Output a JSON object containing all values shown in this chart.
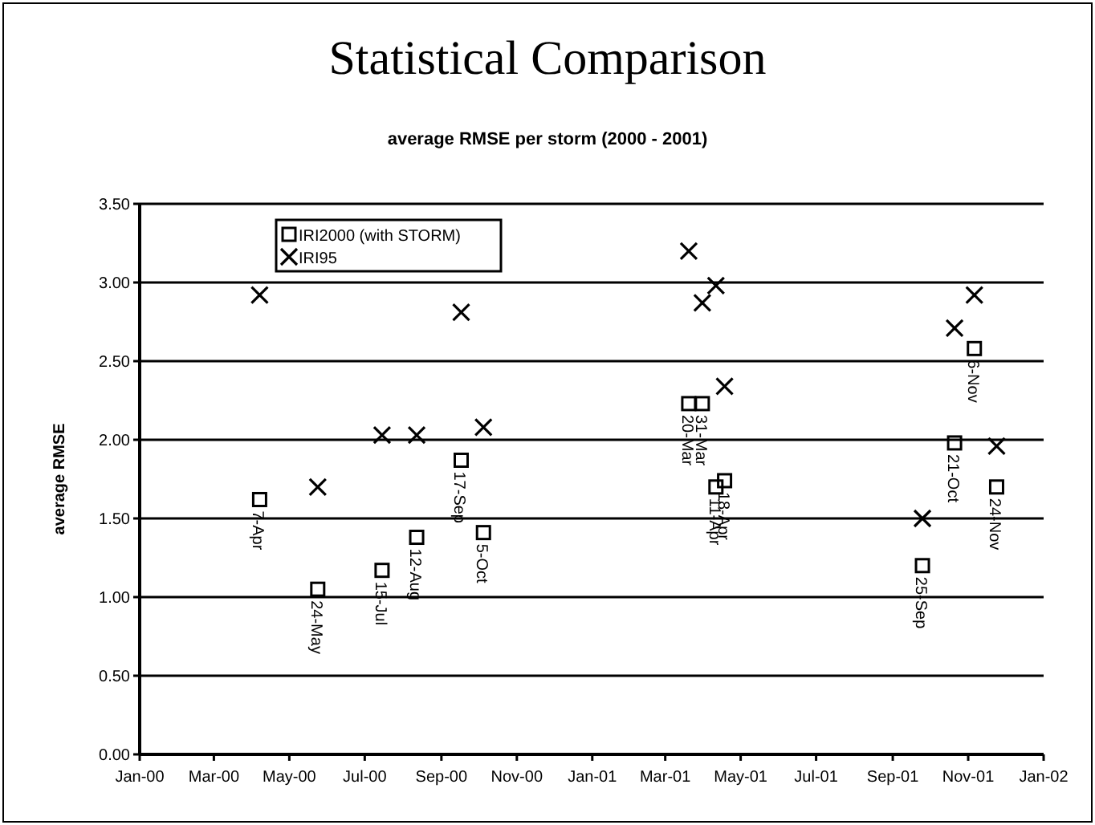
{
  "chart_data": {
    "type": "scatter",
    "title": "Statistical Comparison",
    "subtitle": "average RMSE per storm (2000 - 2001)",
    "ylabel": "average RMSE",
    "x": [
      "2000-04-07",
      "2000-05-24",
      "2000-07-15",
      "2000-08-12",
      "2000-09-17",
      "2000-10-05",
      "2001-03-20",
      "2001-03-31",
      "2001-04-11",
      "2001-04-18",
      "2001-09-25",
      "2001-10-21",
      "2001-11-06",
      "2001-11-24"
    ],
    "series": [
      {
        "name": "IRI2000 (with STORM)",
        "color": "#000000",
        "marker": "square",
        "values": [
          1.62,
          1.05,
          1.17,
          1.38,
          1.87,
          1.41,
          2.23,
          2.23,
          1.7,
          1.74,
          1.2,
          1.98,
          2.58,
          1.7
        ]
      },
      {
        "name": "IRI95",
        "color": "#000000",
        "marker": "cross",
        "values": [
          2.92,
          1.7,
          2.03,
          2.03,
          2.81,
          2.08,
          3.2,
          2.87,
          2.98,
          2.34,
          1.5,
          2.71,
          2.92,
          1.96
        ]
      }
    ],
    "annotations": [
      {
        "text": "7-Apr",
        "x": "2000-04-07",
        "y": 1.62
      },
      {
        "text": "24-May",
        "x": "2000-05-24",
        "y": 1.05
      },
      {
        "text": "15-Jul",
        "x": "2000-07-15",
        "y": 1.17
      },
      {
        "text": "12-Aug",
        "x": "2000-08-12",
        "y": 1.38
      },
      {
        "text": "17-Sep",
        "x": "2000-09-17",
        "y": 1.87
      },
      {
        "text": "5-Oct",
        "x": "2000-10-05",
        "y": 1.41
      },
      {
        "text": "20-Mar",
        "x": "2001-03-20",
        "y": 2.23
      },
      {
        "text": "31-Mar",
        "x": "2001-03-31",
        "y": 2.23
      },
      {
        "text": "11-Apr",
        "x": "2001-04-11",
        "y": 1.7
      },
      {
        "text": "18-Apr",
        "x": "2001-04-18",
        "y": 1.74
      },
      {
        "text": "25-Sep",
        "x": "2001-09-25",
        "y": 1.2
      },
      {
        "text": "21-Oct",
        "x": "2001-10-21",
        "y": 1.98
      },
      {
        "text": "6-Nov",
        "x": "2001-11-06",
        "y": 2.58
      },
      {
        "text": "24-Nov",
        "x": "2001-11-24",
        "y": 1.7
      }
    ],
    "xlim": [
      "2000-01-01",
      "2002-01-01"
    ],
    "xticks": [
      {
        "value": "2000-01-01",
        "label": "Jan-00"
      },
      {
        "value": "2000-03-01",
        "label": "Mar-00"
      },
      {
        "value": "2000-05-01",
        "label": "May-00"
      },
      {
        "value": "2000-07-01",
        "label": "Jul-00"
      },
      {
        "value": "2000-09-01",
        "label": "Sep-00"
      },
      {
        "value": "2000-11-01",
        "label": "Nov-00"
      },
      {
        "value": "2001-01-01",
        "label": "Jan-01"
      },
      {
        "value": "2001-03-01",
        "label": "Mar-01"
      },
      {
        "value": "2001-05-01",
        "label": "May-01"
      },
      {
        "value": "2001-07-01",
        "label": "Jul-01"
      },
      {
        "value": "2001-09-01",
        "label": "Sep-01"
      },
      {
        "value": "2001-11-01",
        "label": "Nov-01"
      },
      {
        "value": "2002-01-01",
        "label": "Jan-02"
      }
    ],
    "ylim": [
      0,
      3.5
    ],
    "yticks": [
      {
        "value": 0,
        "label": "0.00"
      },
      {
        "value": 0.5,
        "label": "0.50"
      },
      {
        "value": 1,
        "label": "1.00"
      },
      {
        "value": 1.5,
        "label": "1.50"
      },
      {
        "value": 2,
        "label": "2.00"
      },
      {
        "value": 2.5,
        "label": "2.50"
      },
      {
        "value": 3,
        "label": "3.00"
      },
      {
        "value": 3.5,
        "label": "3.50"
      }
    ],
    "grid": "y",
    "legend": "top left"
  }
}
